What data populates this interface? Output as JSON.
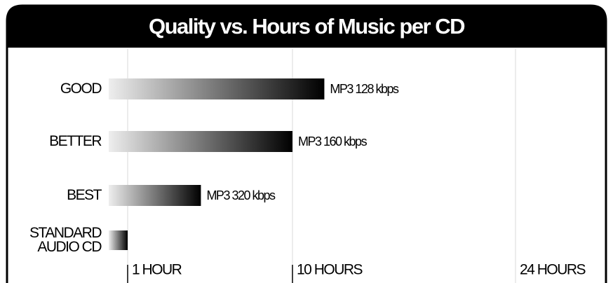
{
  "chart_data": {
    "type": "bar",
    "orientation": "horizontal",
    "title": "Quality vs. Hours of Music per CD",
    "categories": [
      "GOOD",
      "BETTER",
      "BEST",
      "STANDARD AUDIO CD"
    ],
    "values": [
      12,
      10,
      5,
      1
    ],
    "bar_labels": [
      "MP3 128 kbps",
      "MP3 160 kbps",
      "MP3 320 kbps",
      null
    ],
    "color": "#000000",
    "xlim": [
      0,
      24
    ],
    "xticks": [
      {
        "value": 1,
        "label": "1 HOUR"
      },
      {
        "value": 10,
        "label": "10 HOURS"
      },
      {
        "value": 24,
        "label": "24 HOURS"
      }
    ],
    "grid": true
  }
}
